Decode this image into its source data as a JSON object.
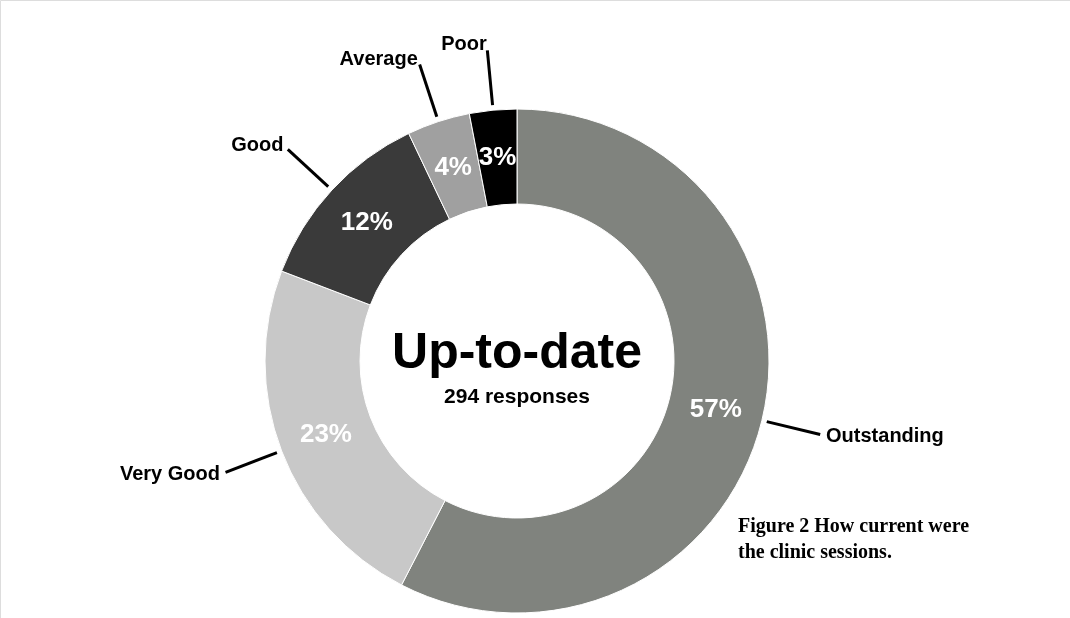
{
  "chart_data": {
    "type": "donut",
    "title": "Up-to-date",
    "subtitle": "294 responses",
    "categories": [
      "Outstanding",
      "Very Good",
      "Good",
      "Average",
      "Poor"
    ],
    "values": [
      57,
      23,
      12,
      4,
      3
    ],
    "value_labels": [
      "57%",
      "23%",
      "12%",
      "4%",
      "3%"
    ],
    "colors": [
      "#80837e",
      "#c8c8c8",
      "#3a3a3a",
      "#a0a0a0",
      "#000000"
    ],
    "annotations": [
      "Figure 2 How current were the clinic sessions."
    ]
  }
}
